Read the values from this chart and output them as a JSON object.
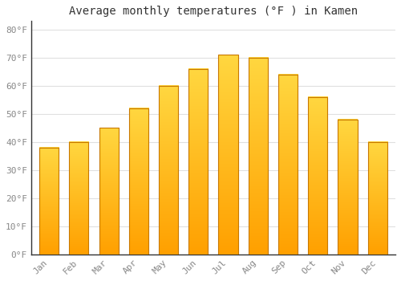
{
  "months": [
    "Jan",
    "Feb",
    "Mar",
    "Apr",
    "May",
    "Jun",
    "Jul",
    "Aug",
    "Sep",
    "Oct",
    "Nov",
    "Dec"
  ],
  "temperatures": [
    38,
    40,
    45,
    52,
    60,
    66,
    71,
    70,
    64,
    56,
    48,
    40
  ],
  "bar_color_top": "#FFD740",
  "bar_color_bottom": "#FFA000",
  "bar_edge_color": "#C87800",
  "background_color": "#FFFFFF",
  "grid_color": "#E0E0E0",
  "title": "Average monthly temperatures (°F ) in Kamen",
  "title_fontsize": 10,
  "ylabel_ticks": [
    0,
    10,
    20,
    30,
    40,
    50,
    60,
    70,
    80
  ],
  "ylim": [
    0,
    83
  ],
  "tick_label_fontsize": 8,
  "font_family": "monospace",
  "bar_width": 0.65
}
